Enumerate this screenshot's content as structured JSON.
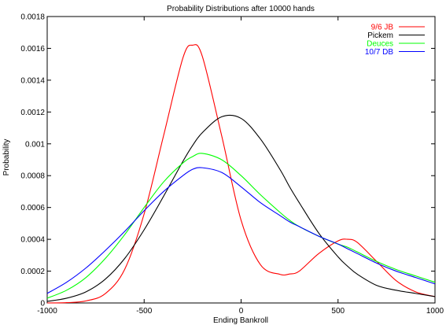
{
  "chart_data": {
    "type": "line",
    "title": "Probability Distributions after 10000 hands",
    "xlabel": "Ending Bankroll",
    "ylabel": "Probability",
    "xlim": [
      -1000,
      1000
    ],
    "ylim": [
      0,
      0.0018
    ],
    "x_ticks": [
      -1000,
      -500,
      0,
      500,
      1000
    ],
    "x_tick_labels": [
      "-1000",
      "-500",
      "0",
      "500",
      "1000"
    ],
    "y_ticks": [
      0,
      0.0002,
      0.0004,
      0.0006,
      0.0008,
      0.001,
      0.0012,
      0.0014,
      0.0016,
      0.0018
    ],
    "y_tick_labels": [
      "0",
      "0.0002",
      "0.0004",
      "0.0006",
      "0.0008",
      "0.001",
      "0.0012",
      "0.0014",
      "0.0016",
      "0.0018"
    ],
    "grid": false,
    "legend_position": "top-right",
    "x": [
      -1000,
      -900,
      -800,
      -700,
      -600,
      -500,
      -400,
      -300,
      -250,
      -200,
      -100,
      0,
      100,
      200,
      250,
      300,
      400,
      500,
      550,
      600,
      700,
      800,
      900,
      1000
    ],
    "series": [
      {
        "name": "9/6 JB",
        "color": "#ff0000",
        "values": [
          0.0,
          2e-06,
          1.3e-05,
          5.9e-05,
          0.000212,
          0.00056,
          0.00105,
          0.00154,
          0.00162,
          0.00155,
          0.00105,
          0.00052,
          0.00024,
          0.00018,
          0.000182,
          0.0002,
          0.00031,
          0.00039,
          0.0004,
          0.00038,
          0.00026,
          0.00014,
          7e-05,
          4e-05
        ]
      },
      {
        "name": "Pickem",
        "color": "#000000",
        "values": [
          1e-05,
          3e-05,
          7e-05,
          0.00015,
          0.00028,
          0.00046,
          0.00067,
          0.00089,
          0.00099,
          0.00107,
          0.00117,
          0.00116,
          0.00103,
          0.00084,
          0.00073,
          0.00063,
          0.00044,
          0.00029,
          0.00023,
          0.00018,
          0.00011,
          8e-05,
          6e-05,
          4e-05
        ]
      },
      {
        "name": "Deuces",
        "color": "#00ff00",
        "values": [
          3e-05,
          8e-05,
          0.00016,
          0.00028,
          0.00043,
          0.0006,
          0.00076,
          0.00088,
          0.00092,
          0.00094,
          0.0009,
          0.0008,
          0.00068,
          0.00057,
          0.00052,
          0.00048,
          0.00042,
          0.00037,
          0.00035,
          0.00032,
          0.00026,
          0.00021,
          0.00017,
          0.00013
        ]
      },
      {
        "name": "10/7 DB",
        "color": "#0000ff",
        "values": [
          6e-05,
          0.00013,
          0.00022,
          0.00033,
          0.00045,
          0.00058,
          0.0007,
          0.0008,
          0.00084,
          0.00085,
          0.00082,
          0.00073,
          0.00063,
          0.00055,
          0.00051,
          0.00048,
          0.00042,
          0.00037,
          0.00034,
          0.00031,
          0.00025,
          0.0002,
          0.00016,
          0.00012
        ]
      }
    ]
  }
}
